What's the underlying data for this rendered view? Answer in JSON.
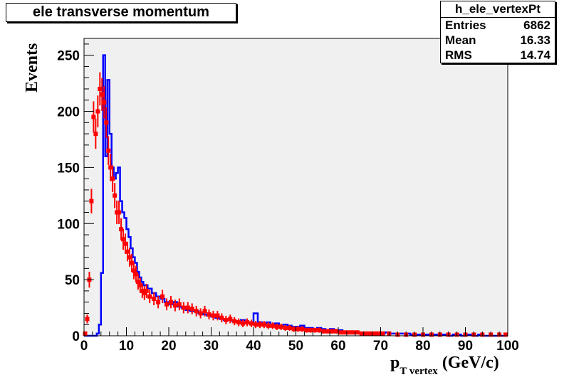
{
  "title": "ele transverse momentum",
  "stats": {
    "name": "h_ele_vertexPt",
    "rows": [
      {
        "label": "Entries",
        "value": "6862"
      },
      {
        "label": "Mean",
        "value": "16.33"
      },
      {
        "label": "RMS",
        "value": "14.74"
      }
    ]
  },
  "axes": {
    "ylabel": "Events",
    "xlabel_main": "p",
    "xlabel_sub": "T vertex",
    "xlabel_unit": " (GeV/c)"
  },
  "colors": {
    "frame_bg": "#f0f0f0",
    "histogram": "#0000ff",
    "data_points": "#ff0000"
  },
  "chart_data": {
    "type": "line",
    "xlim": [
      0,
      100
    ],
    "ylim": [
      0,
      265
    ],
    "xticks": [
      0,
      10,
      20,
      30,
      40,
      50,
      60,
      70,
      80,
      90,
      100
    ],
    "xtick_labels": [
      "0",
      "10",
      "20",
      "30",
      "40",
      "50",
      "60",
      "70",
      "80",
      "90",
      "100"
    ],
    "yticks": [
      0,
      50,
      100,
      150,
      200,
      250
    ],
    "ytick_labels": [
      "0",
      "50",
      "100",
      "150",
      "200",
      "250"
    ],
    "grid": false,
    "series": [
      {
        "style": "step",
        "color": "#0000ff",
        "x": [
          0,
          2,
          3,
          3.5,
          4,
          4.5,
          5,
          5.5,
          6,
          6.5,
          7,
          7.5,
          8,
          8.5,
          9,
          9.5,
          10,
          10.5,
          11,
          11.5,
          12,
          12.5,
          13,
          13.5,
          14,
          15,
          16,
          17,
          18,
          19,
          20,
          21,
          22,
          23,
          24,
          25,
          26,
          27,
          28,
          29,
          30,
          31,
          32,
          33,
          34,
          35,
          36,
          37,
          38,
          39,
          40,
          41,
          42,
          43,
          44,
          45,
          46,
          47,
          48,
          49,
          50,
          51,
          52,
          53,
          54,
          55,
          56,
          57,
          58,
          59,
          60,
          61,
          62,
          63,
          64,
          65,
          66,
          67,
          68,
          69,
          70,
          71,
          72,
          73,
          74,
          75,
          76,
          77,
          78,
          79,
          80,
          81,
          82,
          83,
          84,
          85,
          86,
          87,
          88,
          89,
          90,
          91,
          92,
          93,
          94,
          95,
          96,
          97,
          98,
          99,
          100
        ],
        "y": [
          0,
          0,
          2,
          10,
          56,
          250,
          160,
          228,
          180,
          150,
          140,
          145,
          150,
          120,
          110,
          105,
          95,
          88,
          78,
          70,
          65,
          57,
          52,
          48,
          45,
          42,
          38,
          35,
          33,
          30,
          28,
          30,
          26,
          25,
          23,
          22,
          22,
          20,
          19,
          18,
          17,
          16,
          15,
          14,
          14,
          13,
          12,
          14,
          12,
          11,
          20,
          12,
          11,
          12,
          10,
          11,
          9,
          10,
          9,
          8,
          8,
          9,
          7,
          7,
          6,
          7,
          6,
          5,
          6,
          5,
          5,
          4,
          4,
          4,
          3,
          3,
          3,
          3,
          2,
          3,
          2,
          3,
          2,
          2,
          2,
          2,
          2,
          1,
          1,
          1,
          1,
          1,
          1,
          1,
          1,
          1,
          0,
          1,
          1,
          0,
          1,
          1,
          0,
          1,
          0,
          0,
          0,
          0,
          0,
          0,
          2
        ]
      },
      {
        "style": "points_with_errors",
        "color": "#ff0000",
        "x": [
          0.25,
          0.75,
          1.25,
          1.75,
          2.25,
          2.75,
          3.25,
          3.75,
          4.25,
          4.75,
          5.25,
          5.75,
          6.25,
          6.75,
          7.25,
          7.75,
          8.25,
          8.75,
          9.25,
          9.75,
          10.25,
          10.75,
          11.25,
          11.75,
          12.25,
          12.75,
          13.25,
          13.75,
          14.25,
          14.75,
          15.5,
          16.5,
          17.5,
          18.5,
          19.5,
          20.5,
          21.5,
          22.5,
          23.5,
          24.5,
          25.5,
          26.5,
          27.5,
          28.5,
          29.5,
          30.5,
          31.5,
          32.5,
          33.5,
          34.5,
          35.5,
          36.5,
          37.5,
          38.5,
          39.5,
          40.5,
          41.5,
          42.5,
          43.5,
          44.5,
          45.5,
          46.5,
          47.5,
          48.5,
          49.5,
          50.5,
          51.5,
          52.5,
          53.5,
          54.5,
          55.5,
          56.5,
          57.5,
          58.5,
          59.5,
          60.5,
          61.5,
          62.5,
          63.5,
          64.5,
          65.5,
          66.5,
          67.5,
          68.5,
          69.5,
          70.5,
          72,
          74,
          76,
          78,
          80,
          82,
          84,
          86,
          88,
          90,
          92,
          94,
          96,
          98,
          99.5
        ],
        "y": [
          2,
          15,
          50,
          120,
          195,
          180,
          200,
          220,
          215,
          208,
          190,
          165,
          150,
          140,
          125,
          110,
          110,
          95,
          86,
          82,
          75,
          70,
          65,
          58,
          55,
          48,
          45,
          40,
          38,
          40,
          35,
          33,
          30,
          35,
          28,
          30,
          27,
          28,
          25,
          25,
          24,
          22,
          20,
          22,
          19,
          18,
          18,
          16,
          14,
          15,
          13,
          12,
          11,
          12,
          11,
          10,
          10,
          10,
          9,
          9,
          8,
          8,
          7,
          7,
          6,
          6,
          6,
          5,
          5,
          5,
          5,
          4,
          4,
          4,
          4,
          3,
          3,
          3,
          3,
          3,
          2,
          2,
          2,
          2,
          2,
          2,
          2,
          1,
          1,
          1,
          1,
          1,
          1,
          1,
          1,
          1,
          1,
          1,
          1,
          1,
          1
        ]
      }
    ]
  }
}
